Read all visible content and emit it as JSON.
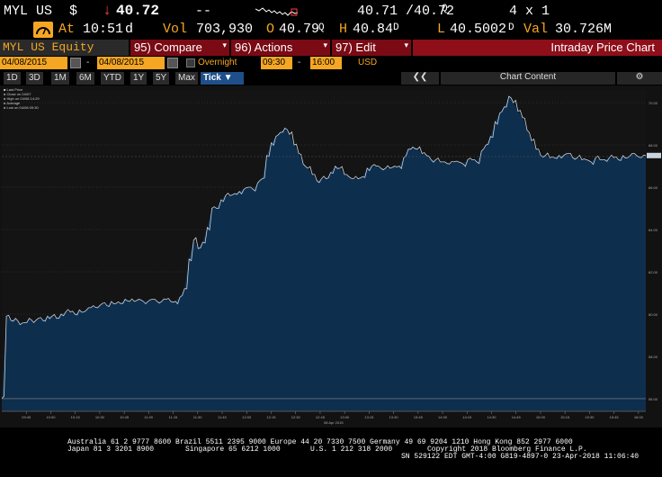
{
  "quote": {
    "ticker": "MYL US",
    "currency_sym": "$",
    "arrow": "↓",
    "price": "40.72",
    "dash": "--",
    "bid_ask": "40.71 /40.72",
    "bid_ask_tag": "Q",
    "size": "4 x 1",
    "at_label": "At",
    "time": "10:51",
    "time_tag": "d",
    "vol_label": "Vol",
    "vol": "703,930",
    "o_label": "O",
    "open": "40.79",
    "open_tag": "Q",
    "h_label": "H",
    "high": "40.84",
    "high_tag": "D",
    "l_label": "L",
    "low": "40.5002",
    "low_tag": "D",
    "val_label": "Val",
    "val": "30.726M"
  },
  "menubar": {
    "equity": "MYL US Equity",
    "compare": "95) Compare",
    "actions": "96) Actions",
    "edit": "97) Edit",
    "title": "Intraday Price Chart"
  },
  "daterow": {
    "start_date": "04/08/2015",
    "end_date": "04/08/2015",
    "overnight": "Overnight",
    "start_time": "09:30",
    "end_time": "16:00",
    "currency": "USD"
  },
  "rangerow": {
    "ranges": [
      "1D",
      "3D",
      "1M",
      "6M",
      "YTD",
      "1Y",
      "5Y",
      "Max"
    ],
    "tick": "Tick ▼",
    "back": "❮❮",
    "chart_content": "Chart Content",
    "gear": "⚙"
  },
  "legend": [
    "Last Price",
    "Close on 04/07",
    "High on 04/08 14:29",
    "Average",
    "Low on 04/08 09:30"
  ],
  "footer": {
    "line1": "Australia 61 2 9777 8600 Brazil 5511 2395 9000 Europe 44 20 7330 7500 Germany 49 69 9204 1210 Hong Kong 852 2977 6000",
    "line2a": "Japan 81 3 3201 8900",
    "line2b": "Singapore 65 6212 1000",
    "line2c": "U.S. 1 212 318 2000",
    "line2d": "Copyright 2018 Bloomberg Finance L.P.",
    "line3": "SN 529122 EDT  GMT-4:00 G819-4897-0 23-Apr-2018 11:06:40"
  },
  "colors": {
    "accent": "#f5a623",
    "menu_red": "#7a0a14",
    "area_fill": "#0e2e4d",
    "line": "#c8d3de"
  },
  "chart_data": {
    "type": "area",
    "x_start": "09:30",
    "x_end": "16:00",
    "x_ticks": [
      "09:45",
      "10:00",
      "10:15",
      "10:30",
      "10:45",
      "11:00",
      "11:15",
      "11:30",
      "11:45",
      "12:00",
      "12:15",
      "12:30",
      "12:45",
      "13:00",
      "13:15",
      "13:30",
      "13:45",
      "14:00",
      "14:15",
      "14:30",
      "14:45",
      "15:00",
      "15:15",
      "15:30",
      "15:45",
      "16:00"
    ],
    "x_center_label": "08 Apr 2015",
    "y_ticks": [
      56,
      58,
      60,
      62,
      64,
      66,
      68,
      70
    ],
    "ylim": [
      55.4,
      70.6
    ],
    "series": [
      {
        "values": [
          56.0,
          59.9,
          59.7,
          59.8,
          59.5,
          59.6,
          59.8,
          59.6,
          59.8,
          59.7,
          59.9,
          59.9,
          59.8,
          60.0,
          60.1,
          60.1,
          60.0,
          60.2,
          60.1,
          60.3,
          60.4,
          60.3,
          60.5,
          60.4,
          60.6,
          60.5,
          60.5,
          60.7,
          60.6,
          60.6,
          60.7,
          60.6,
          60.6,
          60.7,
          60.6,
          60.6,
          60.7,
          60.6,
          60.6,
          60.8,
          61.2,
          62.6,
          63.5,
          63.1,
          63.4,
          64.1,
          65.0,
          65.0,
          65.4,
          65.6,
          65.6,
          65.7,
          65.8,
          65.9,
          66.0,
          65.9,
          66.2,
          66.4,
          67.5,
          68.1,
          68.4,
          68.6,
          68.8,
          68.5,
          68.0,
          67.6,
          67.1,
          66.9,
          66.6,
          66.3,
          66.4,
          66.4,
          66.7,
          67.0,
          66.9,
          66.6,
          66.5,
          66.4,
          66.4,
          66.5,
          66.9,
          67.0,
          67.0,
          66.9,
          66.9,
          66.9,
          67.0,
          67.0,
          67.4,
          67.8,
          67.9,
          67.8,
          67.6,
          67.5,
          67.3,
          67.3,
          67.2,
          67.2,
          67.1,
          67.2,
          67.2,
          67.1,
          67.3,
          67.3,
          67.2,
          67.7,
          68.0,
          68.4,
          69.1,
          69.5,
          69.8,
          70.3,
          70.0,
          69.6,
          69.3,
          68.7,
          68.2,
          67.8,
          67.5,
          67.5,
          67.4,
          67.4,
          67.5,
          67.5,
          67.6,
          67.4,
          67.4,
          67.3,
          67.3,
          67.2,
          67.4,
          67.3,
          67.3,
          67.4,
          67.4,
          67.3,
          67.5,
          67.4,
          67.6,
          67.5,
          67.4,
          67.5
        ]
      }
    ]
  }
}
